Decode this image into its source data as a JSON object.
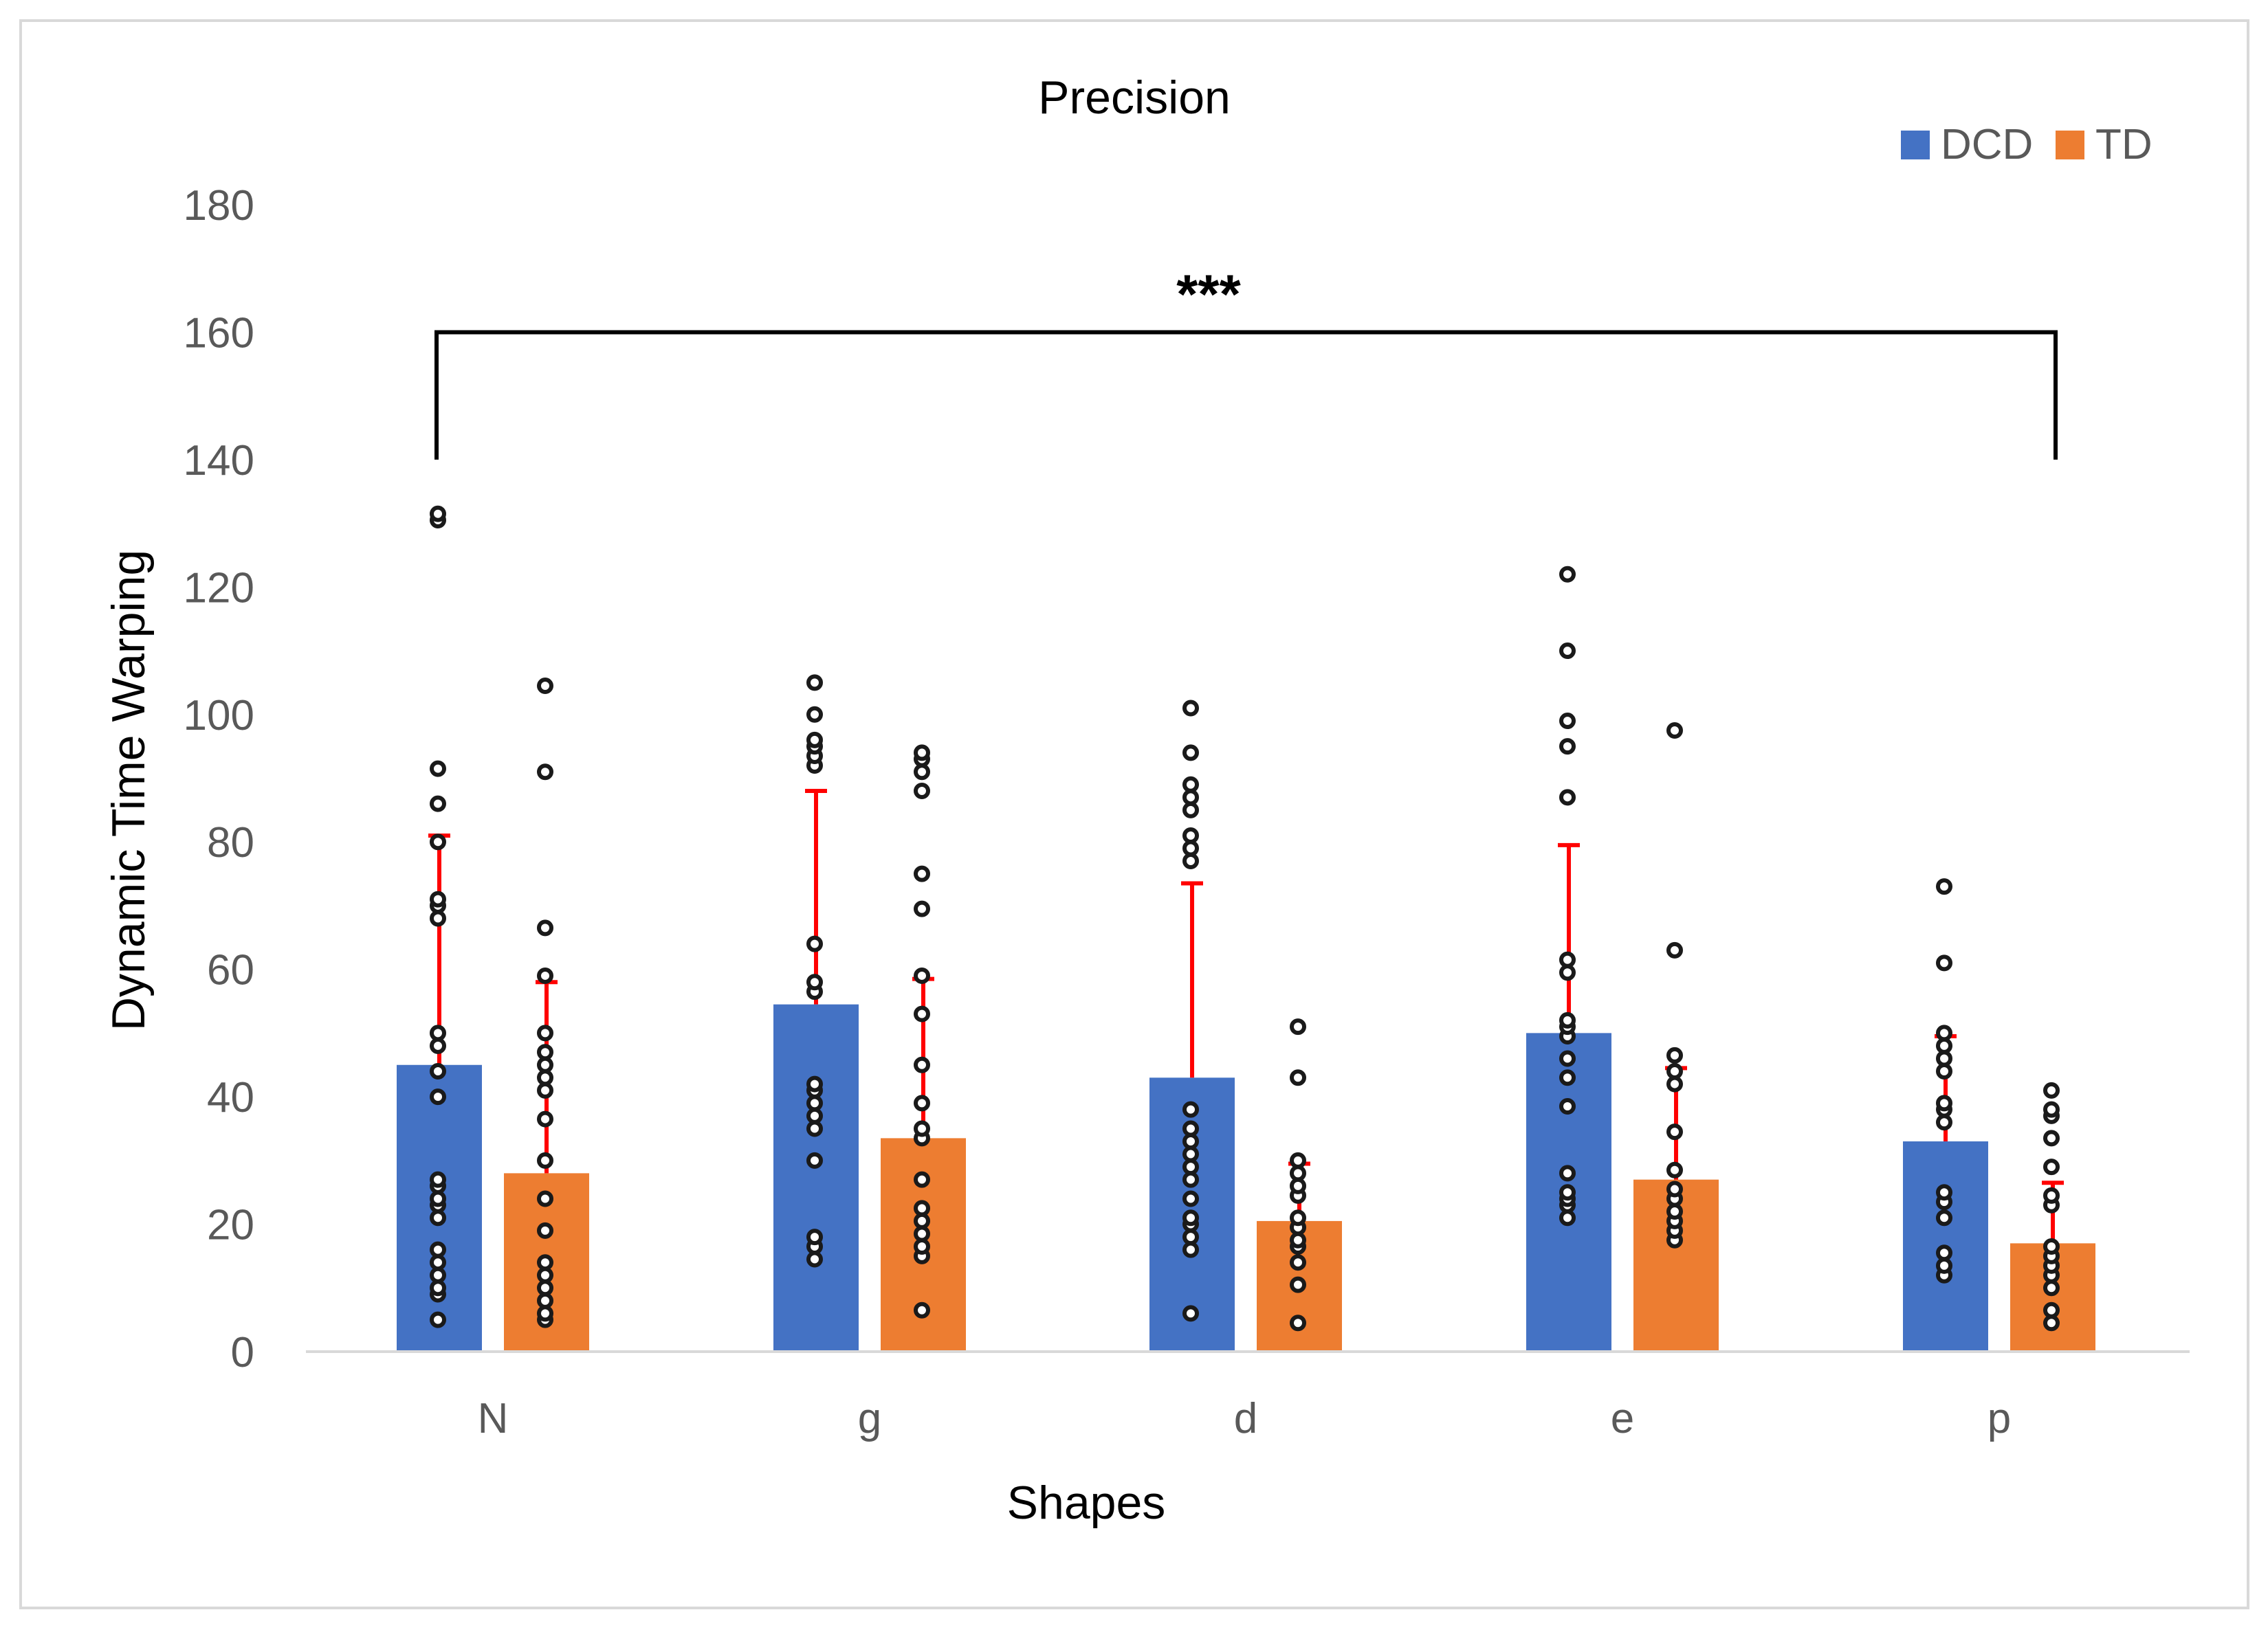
{
  "chart_data": {
    "type": "bar",
    "title": "Precision",
    "xlabel": "Shapes",
    "ylabel": "Dynamic Time Warping",
    "ylim": [
      0,
      180
    ],
    "yticks": [
      0,
      20,
      40,
      60,
      80,
      100,
      120,
      140,
      160,
      180
    ],
    "categories": [
      "N",
      "g",
      "d",
      "e",
      "p"
    ],
    "series": [
      {
        "name": "DCD",
        "color": "#4472C4",
        "values": [
          45,
          54.5,
          43,
          50,
          33
        ],
        "error_upper": [
          81,
          88,
          73.5,
          79.5,
          49.5
        ],
        "points": [
          [
            5,
            9,
            10,
            12,
            14,
            16,
            21,
            23,
            24,
            26,
            27,
            40,
            44,
            48,
            50,
            68,
            70,
            71,
            80,
            86,
            91.5,
            130.5,
            131.5
          ],
          [
            14.5,
            16.5,
            18,
            30,
            35,
            37,
            39,
            41,
            42,
            56.5,
            58,
            64,
            92,
            93.5,
            95,
            96,
            100,
            105
          ],
          [
            6,
            16,
            18,
            20,
            21,
            24,
            27,
            29,
            31,
            33,
            35,
            38,
            77,
            79,
            81,
            85,
            87,
            89,
            94,
            101
          ],
          [
            21,
            23,
            24,
            25,
            28,
            38.5,
            43,
            46,
            49.5,
            51,
            52,
            59.5,
            61.5,
            87,
            95,
            99,
            110,
            122
          ],
          [
            12,
            13.5,
            15.5,
            21,
            23.5,
            25,
            36,
            38,
            39,
            44,
            46,
            48,
            50,
            61,
            73
          ]
        ]
      },
      {
        "name": "TD",
        "color": "#ED7D31",
        "values": [
          28,
          33.5,
          20.5,
          27,
          17
        ],
        "error_upper": [
          58,
          58.5,
          29.5,
          44.5,
          26.5
        ],
        "points": [
          [
            5,
            6,
            8,
            10,
            12,
            14,
            19,
            24,
            30,
            36.5,
            41,
            43,
            45,
            47,
            50,
            59,
            66.5,
            91,
            104.5
          ],
          [
            6.5,
            15,
            16.5,
            18.5,
            20.5,
            22.5,
            27,
            33.5,
            35,
            39,
            45,
            53,
            59,
            69.5,
            75,
            88,
            91,
            93,
            94
          ],
          [
            4.5,
            10.5,
            14,
            16.5,
            17.5,
            19.5,
            21,
            24.5,
            26,
            28,
            30,
            43,
            51
          ],
          [
            17.5,
            19,
            20.5,
            22,
            24,
            25.5,
            28.5,
            34.5,
            42,
            44,
            46.5,
            63,
            97.5
          ],
          [
            4.5,
            6.5,
            10,
            12,
            13.5,
            15,
            16.5,
            23,
            24.5,
            29,
            33.5,
            37,
            38,
            41
          ]
        ]
      }
    ],
    "error_bar_color": "#FF0000",
    "annotation": {
      "text": "***",
      "bracket_y": 160,
      "bracket_left_end": 140,
      "bracket_right_end": 140,
      "from_category": "N",
      "to_category": "p"
    },
    "legend_position": "top-right",
    "grid": false
  }
}
